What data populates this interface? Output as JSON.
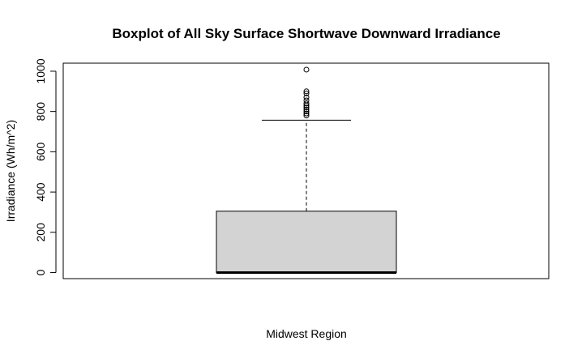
{
  "chart_data": {
    "type": "boxplot",
    "title": "Boxplot of All Sky Surface Shortwave Downward Irradiance",
    "xlabel": "Midwest Region",
    "ylabel": "Irradiance (Wh/m^2)",
    "ylim": [
      -30,
      1040
    ],
    "yticks": [
      0,
      200,
      400,
      600,
      800,
      1000
    ],
    "grid": false,
    "legend": "none",
    "box": {
      "min": 0,
      "q1": 0,
      "median": 0,
      "q3": 305,
      "whisker_high": 757,
      "fill": "#d3d3d3"
    },
    "outliers": [
      780,
      790,
      800,
      810,
      820,
      830,
      840,
      855,
      870,
      890,
      900,
      1008
    ]
  }
}
